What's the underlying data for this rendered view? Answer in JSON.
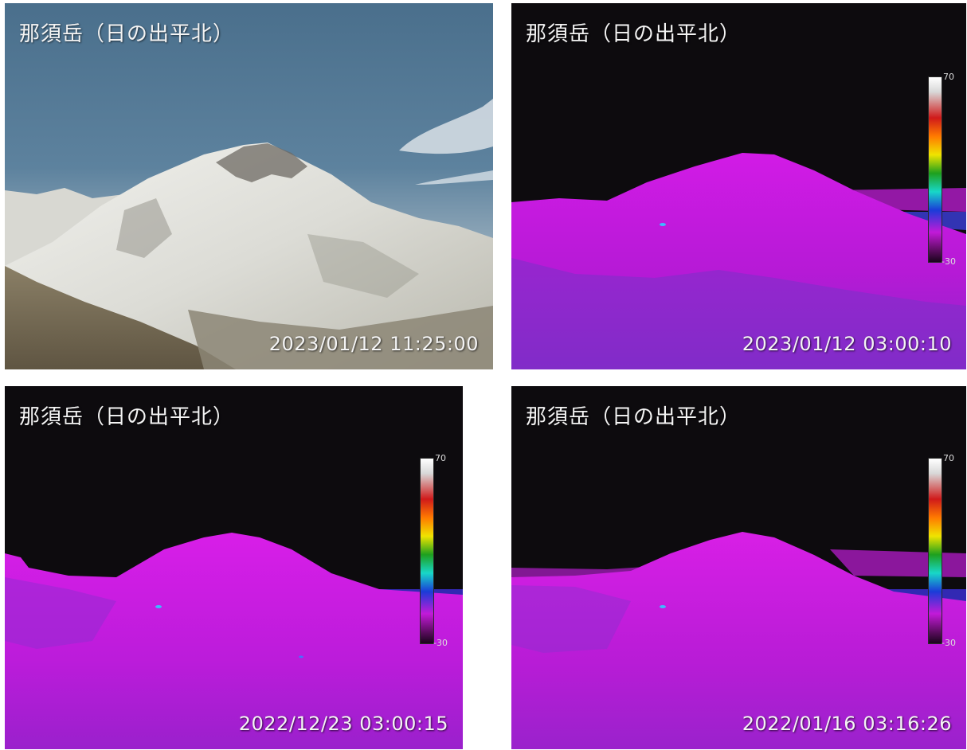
{
  "panels": [
    {
      "label": "那須岳（日の出平北）",
      "timestamp": "2023/01/12 11:25:00",
      "mode": "visible"
    },
    {
      "label": "那須岳（日の出平北）",
      "timestamp": "2023/01/12 03:00:10",
      "mode": "thermal",
      "scale_max": "70",
      "scale_min": "-30"
    },
    {
      "label": "那須岳（日の出平北）",
      "timestamp": "2022/12/23 03:00:15",
      "mode": "thermal",
      "scale_max": "70",
      "scale_min": "-30"
    },
    {
      "label": "那須岳（日の出平北）",
      "timestamp": "2022/01/16 03:16:26",
      "mode": "thermal",
      "scale_max": "70",
      "scale_min": "-30"
    }
  ],
  "colors": {
    "sky": "#4f7390",
    "snow": "#e6e6e2",
    "thermal_background": "#0d0b0e",
    "thermal_mountain": "#c21ad8",
    "thermal_cool": "#5a3cc8"
  }
}
